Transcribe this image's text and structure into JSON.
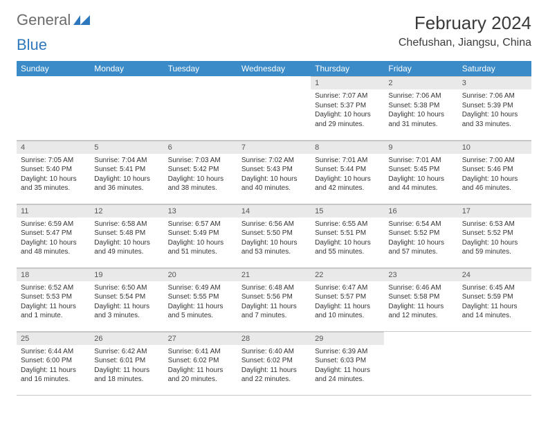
{
  "brand": {
    "name1": "General",
    "name2": "Blue"
  },
  "title": "February 2024",
  "location": "Chefushan, Jiangsu, China",
  "colors": {
    "header_bg": "#3b8bc9",
    "header_text": "#ffffff",
    "daynum_bg": "#e9e9e9",
    "border": "#c8c8c8",
    "brand_gray": "#6b6b6b",
    "brand_blue": "#2d78bd"
  },
  "day_labels": [
    "Sunday",
    "Monday",
    "Tuesday",
    "Wednesday",
    "Thursday",
    "Friday",
    "Saturday"
  ],
  "weeks": [
    [
      null,
      null,
      null,
      null,
      {
        "n": "1",
        "sr": "7:07 AM",
        "ss": "5:37 PM",
        "dl": "10 hours and 29 minutes."
      },
      {
        "n": "2",
        "sr": "7:06 AM",
        "ss": "5:38 PM",
        "dl": "10 hours and 31 minutes."
      },
      {
        "n": "3",
        "sr": "7:06 AM",
        "ss": "5:39 PM",
        "dl": "10 hours and 33 minutes."
      }
    ],
    [
      {
        "n": "4",
        "sr": "7:05 AM",
        "ss": "5:40 PM",
        "dl": "10 hours and 35 minutes."
      },
      {
        "n": "5",
        "sr": "7:04 AM",
        "ss": "5:41 PM",
        "dl": "10 hours and 36 minutes."
      },
      {
        "n": "6",
        "sr": "7:03 AM",
        "ss": "5:42 PM",
        "dl": "10 hours and 38 minutes."
      },
      {
        "n": "7",
        "sr": "7:02 AM",
        "ss": "5:43 PM",
        "dl": "10 hours and 40 minutes."
      },
      {
        "n": "8",
        "sr": "7:01 AM",
        "ss": "5:44 PM",
        "dl": "10 hours and 42 minutes."
      },
      {
        "n": "9",
        "sr": "7:01 AM",
        "ss": "5:45 PM",
        "dl": "10 hours and 44 minutes."
      },
      {
        "n": "10",
        "sr": "7:00 AM",
        "ss": "5:46 PM",
        "dl": "10 hours and 46 minutes."
      }
    ],
    [
      {
        "n": "11",
        "sr": "6:59 AM",
        "ss": "5:47 PM",
        "dl": "10 hours and 48 minutes."
      },
      {
        "n": "12",
        "sr": "6:58 AM",
        "ss": "5:48 PM",
        "dl": "10 hours and 49 minutes."
      },
      {
        "n": "13",
        "sr": "6:57 AM",
        "ss": "5:49 PM",
        "dl": "10 hours and 51 minutes."
      },
      {
        "n": "14",
        "sr": "6:56 AM",
        "ss": "5:50 PM",
        "dl": "10 hours and 53 minutes."
      },
      {
        "n": "15",
        "sr": "6:55 AM",
        "ss": "5:51 PM",
        "dl": "10 hours and 55 minutes."
      },
      {
        "n": "16",
        "sr": "6:54 AM",
        "ss": "5:52 PM",
        "dl": "10 hours and 57 minutes."
      },
      {
        "n": "17",
        "sr": "6:53 AM",
        "ss": "5:52 PM",
        "dl": "10 hours and 59 minutes."
      }
    ],
    [
      {
        "n": "18",
        "sr": "6:52 AM",
        "ss": "5:53 PM",
        "dl": "11 hours and 1 minute."
      },
      {
        "n": "19",
        "sr": "6:50 AM",
        "ss": "5:54 PM",
        "dl": "11 hours and 3 minutes."
      },
      {
        "n": "20",
        "sr": "6:49 AM",
        "ss": "5:55 PM",
        "dl": "11 hours and 5 minutes."
      },
      {
        "n": "21",
        "sr": "6:48 AM",
        "ss": "5:56 PM",
        "dl": "11 hours and 7 minutes."
      },
      {
        "n": "22",
        "sr": "6:47 AM",
        "ss": "5:57 PM",
        "dl": "11 hours and 10 minutes."
      },
      {
        "n": "23",
        "sr": "6:46 AM",
        "ss": "5:58 PM",
        "dl": "11 hours and 12 minutes."
      },
      {
        "n": "24",
        "sr": "6:45 AM",
        "ss": "5:59 PM",
        "dl": "11 hours and 14 minutes."
      }
    ],
    [
      {
        "n": "25",
        "sr": "6:44 AM",
        "ss": "6:00 PM",
        "dl": "11 hours and 16 minutes."
      },
      {
        "n": "26",
        "sr": "6:42 AM",
        "ss": "6:01 PM",
        "dl": "11 hours and 18 minutes."
      },
      {
        "n": "27",
        "sr": "6:41 AM",
        "ss": "6:02 PM",
        "dl": "11 hours and 20 minutes."
      },
      {
        "n": "28",
        "sr": "6:40 AM",
        "ss": "6:02 PM",
        "dl": "11 hours and 22 minutes."
      },
      {
        "n": "29",
        "sr": "6:39 AM",
        "ss": "6:03 PM",
        "dl": "11 hours and 24 minutes."
      },
      null,
      null
    ]
  ],
  "labels": {
    "sunrise": "Sunrise:",
    "sunset": "Sunset:",
    "daylight": "Daylight:"
  }
}
